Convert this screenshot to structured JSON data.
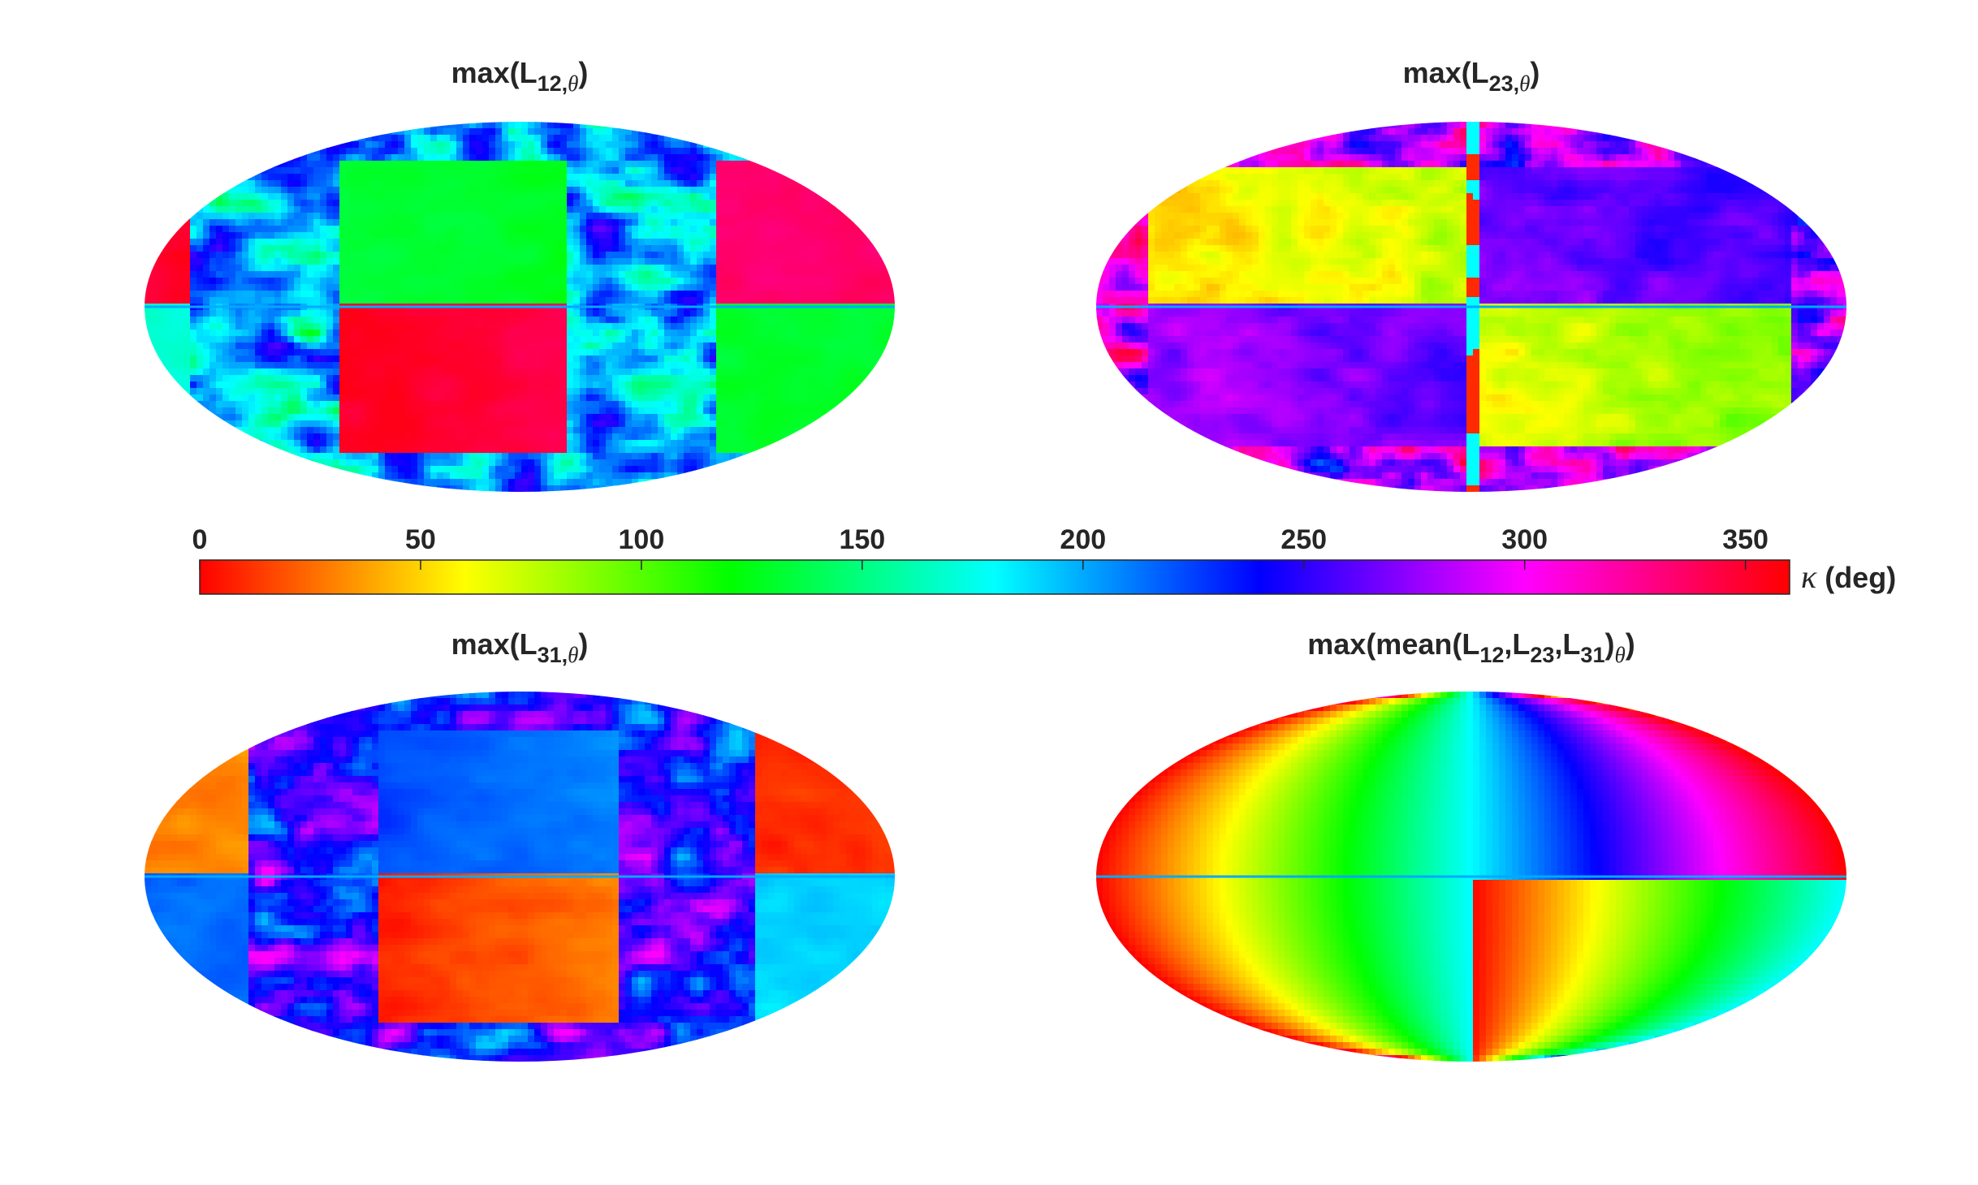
{
  "chart_data": {
    "type": "heatmap",
    "projection": "mollweide",
    "colormap": "hsv",
    "colorbar": {
      "label_symbol": "κ",
      "label_unit": "(deg)",
      "range": [
        0,
        360
      ],
      "ticks": [
        "0",
        "50",
        "100",
        "150",
        "200",
        "250",
        "300",
        "350"
      ],
      "placement": "horizontal, between top and bottom rows"
    },
    "panels": [
      {
        "title_main": "max(L",
        "title_sub": "12,",
        "title_sub_it": "θ",
        "title_end": ")",
        "pattern": "l12"
      },
      {
        "title_main": "max(L",
        "title_sub": "23,",
        "title_sub_it": "θ",
        "title_end": ")",
        "pattern": "l23"
      },
      {
        "title_main": "max(L",
        "title_sub": "31,",
        "title_sub_it": "θ",
        "title_end": ")",
        "pattern": "l31"
      },
      {
        "title_prefix": "max(mean(L",
        "title_sub1": "12",
        "title_mid1": ",L",
        "title_sub2": "23",
        "title_mid2": ",L",
        "title_sub3": "31",
        "title_mid3": ")",
        "title_sub_it": "θ",
        "title_end": ")",
        "pattern": "mean"
      }
    ]
  }
}
